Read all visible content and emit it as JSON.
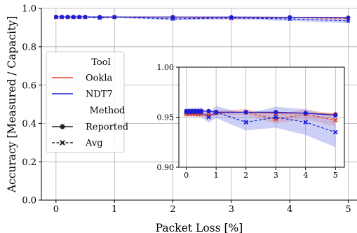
{
  "colors": {
    "ookla": "#e8412b",
    "ndt7": "#1a1fd6",
    "ndt7_band": "#6f78e6",
    "ookla_band": "#f08a78"
  },
  "chart_data": [
    {
      "type": "line",
      "id": "main",
      "xlabel": "Packet Loss [%]",
      "ylabel": "Accuracy [Measured / Capacity]",
      "xlim": [
        -0.25,
        5.15
      ],
      "ylim": [
        0.0,
        1.0
      ],
      "xticks": [
        0,
        1,
        2,
        3,
        4,
        5
      ],
      "yticks": [
        0.0,
        0.2,
        0.4,
        0.6,
        0.8,
        1.0
      ],
      "ytick_labels": [
        "0.0",
        "0.2",
        "0.4",
        "0.6",
        "0.8",
        "1.0"
      ],
      "grid": true,
      "legend_placement": "center-left",
      "x": [
        0,
        0.1,
        0.2,
        0.3,
        0.4,
        0.5,
        0.75,
        1,
        2,
        3,
        4,
        5
      ],
      "series": [
        {
          "name": "Ookla",
          "method": "Reported",
          "values": [
            0.956,
            0.956,
            0.956,
            0.956,
            0.956,
            0.956,
            0.956,
            0.955,
            0.955,
            0.954,
            0.954,
            0.953
          ]
        },
        {
          "name": "Ookla",
          "method": "Avg",
          "values": [
            0.953,
            0.953,
            0.953,
            0.953,
            0.953,
            0.953,
            0.952,
            0.954,
            0.955,
            0.948,
            0.953,
            0.947
          ]
        },
        {
          "name": "NDT7",
          "method": "Reported",
          "values": [
            0.956,
            0.956,
            0.956,
            0.956,
            0.956,
            0.956,
            0.956,
            0.955,
            0.955,
            0.955,
            0.954,
            0.952
          ]
        },
        {
          "name": "NDT7",
          "method": "Avg",
          "values": [
            0.955,
            0.955,
            0.955,
            0.955,
            0.955,
            0.955,
            0.95,
            0.955,
            0.945,
            0.95,
            0.945,
            0.935
          ]
        }
      ]
    },
    {
      "type": "line",
      "id": "inset",
      "xlim": [
        -0.25,
        5.3
      ],
      "ylim": [
        0.9,
        1.0
      ],
      "xticks": [
        0,
        1,
        2,
        3,
        4,
        5
      ],
      "yticks": [
        0.9,
        0.95,
        1.0
      ],
      "ytick_labels": [
        "0.90",
        "0.95",
        "1.00"
      ],
      "grid": true,
      "x": [
        0,
        0.1,
        0.2,
        0.3,
        0.4,
        0.5,
        0.75,
        1,
        2,
        3,
        4,
        5
      ],
      "series": [
        {
          "name": "Ookla",
          "method": "Reported",
          "values": [
            0.956,
            0.956,
            0.956,
            0.956,
            0.956,
            0.956,
            0.956,
            0.955,
            0.955,
            0.954,
            0.954,
            0.953
          ]
        },
        {
          "name": "Ookla",
          "method": "Avg",
          "values": [
            0.953,
            0.953,
            0.953,
            0.953,
            0.953,
            0.953,
            0.952,
            0.954,
            0.955,
            0.948,
            0.953,
            0.947
          ]
        },
        {
          "name": "NDT7",
          "method": "Reported",
          "values": [
            0.956,
            0.956,
            0.956,
            0.956,
            0.956,
            0.956,
            0.956,
            0.955,
            0.955,
            0.955,
            0.954,
            0.952
          ]
        },
        {
          "name": "NDT7",
          "method": "Avg",
          "values": [
            0.955,
            0.955,
            0.955,
            0.955,
            0.955,
            0.955,
            0.95,
            0.955,
            0.945,
            0.95,
            0.945,
            0.935
          ]
        }
      ]
    }
  ],
  "legend": {
    "tool_header": "Tool",
    "tool_items": [
      "Ookla",
      "NDT7"
    ],
    "method_header": "Method",
    "method_items": [
      "Reported",
      "Avg"
    ]
  }
}
